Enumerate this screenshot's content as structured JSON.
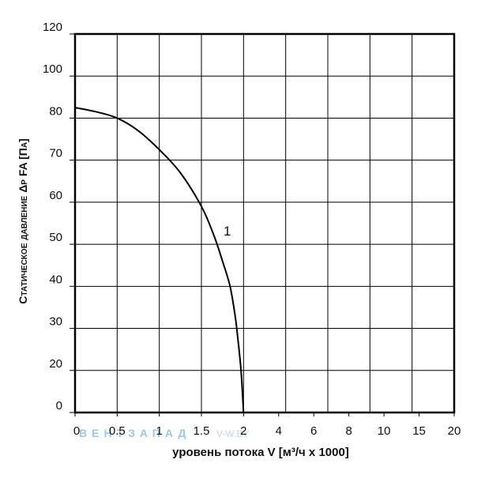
{
  "chart_data": {
    "type": "line",
    "xlabel": "уровень потока V [м³/ч x 1000]",
    "ylabel": "Статическое давление Δр FA [Па]",
    "xlim": [
      0,
      20
    ],
    "ylim": [
      0,
      120
    ],
    "xticks": [
      0,
      0.5,
      1,
      1.5,
      2,
      4,
      6,
      8,
      10,
      15,
      20
    ],
    "yticks": [
      0,
      20,
      30,
      40,
      50,
      60,
      70,
      80,
      100,
      120
    ],
    "grid": true,
    "series": [
      {
        "name": "1",
        "color": "#000000",
        "x": [
          0,
          0.25,
          0.5,
          0.75,
          1,
          1.25,
          1.5,
          1.65,
          1.75,
          1.84,
          1.9,
          1.93,
          1.97,
          2
        ],
        "values": [
          85,
          83,
          80,
          77,
          72.5,
          67,
          59,
          52,
          46,
          40,
          33,
          28,
          20,
          0
        ]
      }
    ],
    "watermark": [
      "ВЕНТЗАПАД",
      "V-W.BY"
    ]
  }
}
